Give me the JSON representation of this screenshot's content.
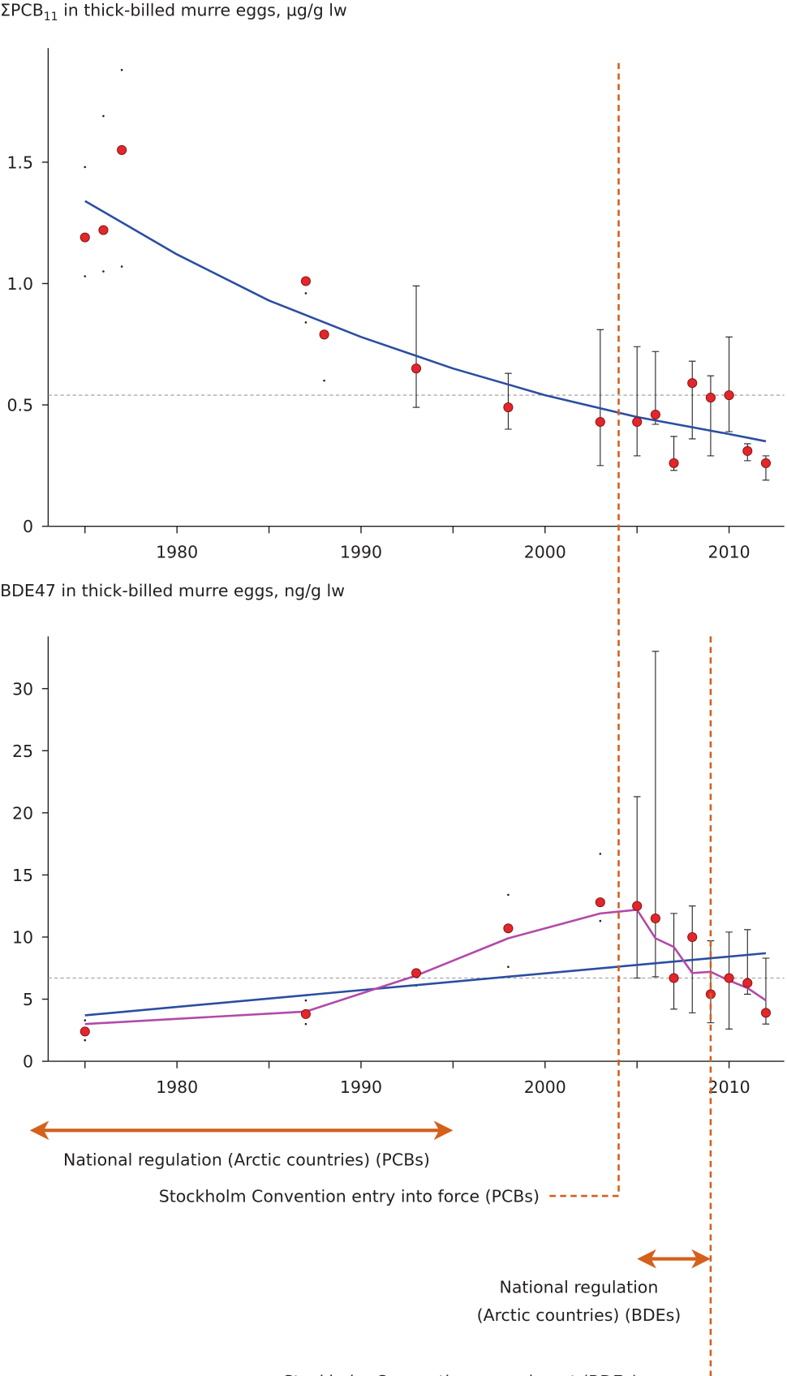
{
  "chart_data": [
    {
      "type": "scatter",
      "title": [
        "ΣPCB",
        "11",
        " in thick-billed murre eggs, µg/g lw"
      ],
      "xlim": [
        1973,
        2013
      ],
      "xticks": [
        1980,
        1990,
        2000,
        2010
      ],
      "xminor_ticks": [
        1975,
        1985,
        1995,
        2005
      ],
      "ylim": [
        0,
        1.97
      ],
      "yticks": [
        0,
        0.5,
        {
          "value": 1,
          "label": "1.0"
        },
        1.5
      ],
      "reference_line": 0.54,
      "points": {
        "color": "#e3262b",
        "x": [
          1975,
          1976,
          1977,
          1987,
          1988,
          1993,
          1998,
          2003,
          2005,
          2006,
          2007,
          2008,
          2009,
          2010,
          2011,
          2012
        ],
        "values": [
          1.19,
          1.22,
          1.55,
          1.01,
          0.79,
          0.65,
          0.49,
          0.43,
          0.43,
          0.46,
          0.26,
          0.59,
          0.53,
          0.54,
          0.31,
          0.26
        ],
        "low": [
          null,
          null,
          null,
          null,
          null,
          0.49,
          0.4,
          0.25,
          0.29,
          0.42,
          0.23,
          0.36,
          0.29,
          0.39,
          0.27,
          0.19
        ],
        "high": [
          null,
          null,
          null,
          null,
          null,
          0.99,
          0.63,
          0.81,
          0.74,
          0.72,
          0.37,
          0.68,
          0.62,
          0.78,
          0.34,
          0.29
        ]
      },
      "dots": {
        "x": [
          1975,
          1975,
          1976,
          1976,
          1977,
          1977,
          1987,
          1987,
          1988
        ],
        "values": [
          1.48,
          1.03,
          1.69,
          1.05,
          1.88,
          1.07,
          0.96,
          0.84,
          0.6
        ]
      },
      "lines": [
        {
          "color": "#2b4ea2",
          "x": [
            1975,
            1980,
            1985,
            1990,
            1995,
            2000,
            2005,
            2010,
            2012
          ],
          "values": [
            1.34,
            1.12,
            0.93,
            0.78,
            0.65,
            0.54,
            0.45,
            0.38,
            0.35
          ]
        }
      ]
    },
    {
      "type": "scatter",
      "title": "BDE47 in thick-billed murre eggs, ng/g lw",
      "xlim": [
        1973,
        2013
      ],
      "xticks": [
        1980,
        1990,
        2000,
        2010
      ],
      "xminor_ticks": [
        1975,
        1985,
        1995,
        2005
      ],
      "ylim": [
        0,
        34.2
      ],
      "yticks": [
        0,
        5,
        10,
        15,
        20,
        25,
        30
      ],
      "reference_line": 6.7,
      "points": {
        "color": "#e3262b",
        "x": [
          1975,
          1987,
          1993,
          1998,
          2003,
          2005,
          2006,
          2007,
          2008,
          2009,
          2010,
          2011,
          2012
        ],
        "values": [
          2.4,
          3.8,
          7.1,
          10.7,
          12.8,
          12.5,
          11.5,
          6.7,
          10.0,
          5.4,
          6.7,
          6.3,
          3.9
        ],
        "low": [
          null,
          null,
          null,
          null,
          null,
          6.7,
          6.8,
          4.2,
          3.9,
          3.1,
          2.6,
          5.4,
          3.0
        ],
        "high": [
          null,
          null,
          null,
          null,
          null,
          21.3,
          33.0,
          11.9,
          12.5,
          9.7,
          10.4,
          10.6,
          8.3
        ]
      },
      "dots": {
        "x": [
          1975,
          1975,
          1987,
          1987,
          1993,
          1998,
          1998,
          2003,
          2003
        ],
        "values": [
          3.3,
          1.7,
          4.9,
          3.0,
          6.1,
          13.4,
          7.6,
          16.7,
          11.3
        ]
      },
      "lines": [
        {
          "color": "#2b4ea2",
          "x": [
            1975,
            2012
          ],
          "values": [
            3.7,
            8.7
          ]
        },
        {
          "color": "#b24aa8",
          "x": [
            1975,
            1987,
            1993,
            1998,
            2003,
            2005,
            2006,
            2007,
            2008,
            2009,
            2010,
            2011,
            2012
          ],
          "values": [
            3.0,
            4.0,
            6.9,
            9.9,
            11.9,
            12.2,
            9.9,
            9.2,
            7.1,
            7.2,
            6.5,
            5.9,
            4.9
          ]
        }
      ]
    }
  ],
  "annotations": {
    "color": "#d4601c",
    "regulations": [
      {
        "text": [
          "National regulation (Arctic countries) (PCBs)"
        ],
        "start": 1972,
        "end": 1995
      },
      {
        "text": [
          "National regulation",
          "(Arctic countries) (BDEs)"
        ],
        "start": 2005,
        "end": 2009
      }
    ],
    "conventions": [
      {
        "text": "Stockholm Convention entry into force (PCBs)",
        "year": 2004
      },
      {
        "text": "Stockholm Convention amendment (BDEs)",
        "year": 2009
      }
    ]
  }
}
